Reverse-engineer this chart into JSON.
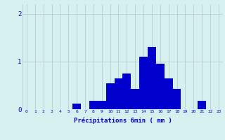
{
  "hours": [
    0,
    1,
    2,
    3,
    4,
    5,
    6,
    7,
    8,
    9,
    10,
    11,
    12,
    13,
    14,
    15,
    16,
    17,
    18,
    19,
    20,
    21,
    22,
    23
  ],
  "values": [
    0,
    0,
    0,
    0,
    0,
    0,
    0.12,
    0,
    0.18,
    0.18,
    0.55,
    0.65,
    0.75,
    0.42,
    1.1,
    1.3,
    0.95,
    0.65,
    0.42,
    0,
    0,
    0.18,
    0,
    0
  ],
  "bar_color": "#0000cc",
  "background_color": "#d6efef",
  "grid_color": "#b0c8c8",
  "xlabel": "Précipitations 6min ( mm )",
  "xlabel_color": "#0000cc",
  "tick_color": "#0000cc",
  "ylim": [
    0,
    2.2
  ],
  "yticks": [
    0,
    1,
    2
  ],
  "xlim": [
    -0.5,
    23.5
  ],
  "figsize": [
    3.2,
    2.0
  ],
  "dpi": 100
}
